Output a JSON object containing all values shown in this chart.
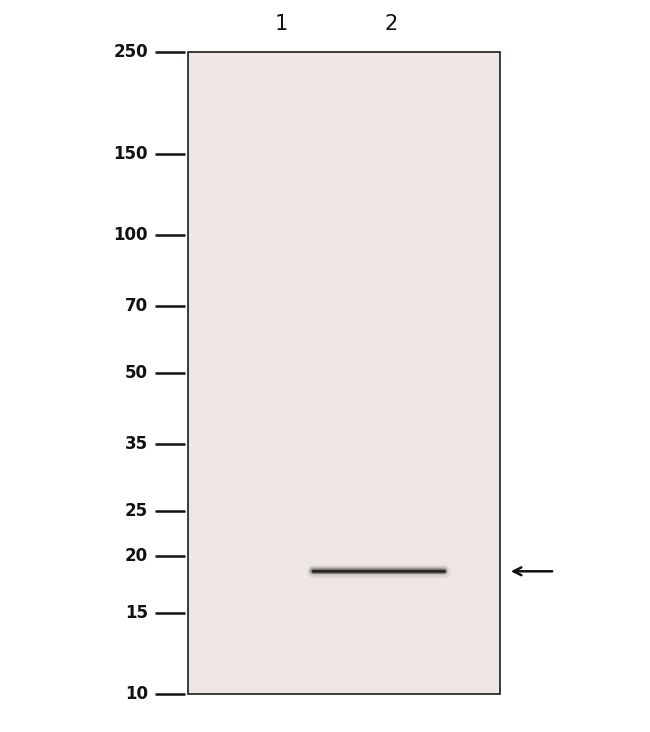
{
  "background_color": "#ffffff",
  "blot_bg_color": "#ede6e3",
  "blot_border_color": "#1a1a1a",
  "lane_labels": [
    "1",
    "2"
  ],
  "lane_label_fontsize": 15,
  "mw_markers": [
    250,
    150,
    100,
    70,
    50,
    35,
    25,
    20,
    15,
    10
  ],
  "mw_marker_color": "#111111",
  "mw_fontsize": 12,
  "band_kda": 18.5,
  "band_color": "#222222",
  "arrow_color": "#111111"
}
